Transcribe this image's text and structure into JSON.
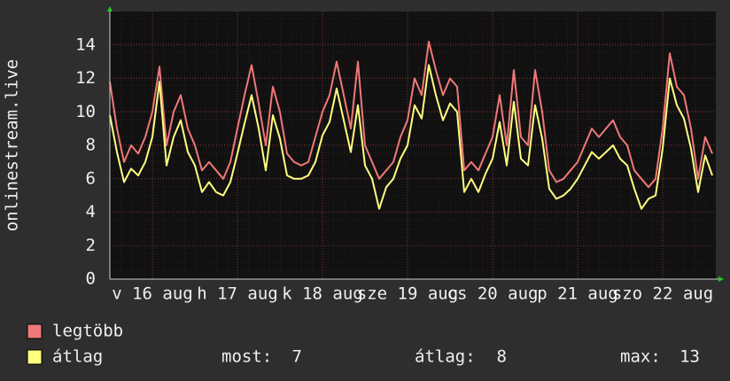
{
  "chart_data": {
    "type": "line",
    "y_label": "onlinestream.live",
    "x": [
      0,
      2,
      4,
      6,
      8,
      10,
      12,
      14,
      16,
      18,
      20,
      22,
      24,
      26,
      28,
      30,
      32,
      34,
      36,
      38,
      40,
      42,
      44,
      46,
      48,
      50,
      52,
      54,
      56,
      58,
      60,
      62,
      64,
      66,
      68,
      70,
      72,
      74,
      76,
      78,
      80,
      82,
      84,
      86,
      88,
      90,
      92,
      94,
      96,
      98,
      100,
      102,
      104,
      106,
      108,
      110,
      112,
      114,
      116,
      118,
      120,
      122,
      124,
      126,
      128,
      130,
      132,
      134,
      136,
      138,
      140,
      142,
      144,
      146,
      148,
      150,
      152,
      154,
      156,
      158,
      160,
      162,
      164,
      166,
      168,
      170
    ],
    "xlim": [
      0,
      171
    ],
    "xticks": [
      {
        "value": 12,
        "label": "v 16 aug"
      },
      {
        "value": 36,
        "label": "h 17 aug"
      },
      {
        "value": 60,
        "label": "k 18 aug"
      },
      {
        "value": 84,
        "label": "sze 19 aug"
      },
      {
        "value": 108,
        "label": "cs 20 aug"
      },
      {
        "value": 132,
        "label": "p 21 aug"
      },
      {
        "value": 156,
        "label": "szo 22 aug"
      }
    ],
    "ylim": [
      0,
      16
    ],
    "yticks": [
      0,
      2,
      4,
      6,
      8,
      10,
      12,
      14
    ],
    "grid": true,
    "series": [
      {
        "name": "legtöbb",
        "color": "#f07878",
        "values": [
          11.8,
          9,
          7,
          8,
          7.5,
          8.5,
          10,
          12.7,
          8,
          10,
          11,
          9,
          8,
          6.5,
          7,
          6.5,
          6,
          7,
          9,
          11,
          12.8,
          10.5,
          8,
          11.5,
          10,
          7.5,
          7,
          6.8,
          7,
          8.5,
          10,
          11,
          13,
          11,
          9,
          13,
          8,
          7,
          6,
          6.5,
          7,
          8.5,
          9.5,
          12,
          11,
          14.2,
          12.5,
          11,
          12,
          11.5,
          6.5,
          7,
          6.5,
          7.5,
          8.5,
          11,
          8,
          12.5,
          8.5,
          8,
          12.5,
          10,
          6.5,
          5.8,
          6,
          6.5,
          7,
          8,
          9,
          8.5,
          9,
          9.5,
          8.5,
          8,
          6.5,
          6,
          5.5,
          6,
          9,
          13.5,
          11.5,
          11,
          9,
          6,
          8.5,
          7.5
        ]
      },
      {
        "name": "átlag",
        "color": "#ffff80",
        "values": [
          9.8,
          7.6,
          5.8,
          6.6,
          6.2,
          7,
          8.5,
          11.8,
          6.8,
          8.5,
          9.5,
          7.6,
          6.8,
          5.2,
          5.8,
          5.2,
          5,
          5.8,
          7.5,
          9.3,
          11,
          9,
          6.5,
          9.8,
          8.4,
          6.2,
          6,
          6,
          6.2,
          7,
          8.6,
          9.4,
          11.4,
          9.5,
          7.6,
          10.4,
          6.8,
          6,
          4.2,
          5.5,
          6,
          7.2,
          8,
          10.4,
          9.6,
          12.8,
          11,
          9.5,
          10.5,
          10,
          5.2,
          6,
          5.2,
          6.3,
          7.2,
          9.4,
          6.8,
          10.6,
          7.2,
          6.8,
          10.4,
          8.4,
          5.4,
          4.8,
          5,
          5.4,
          6,
          6.8,
          7.6,
          7.2,
          7.6,
          8,
          7.2,
          6.8,
          5.4,
          4.2,
          4.8,
          5,
          7.8,
          12,
          10.4,
          9.6,
          7.8,
          5.2,
          7.4,
          6.2
        ]
      }
    ],
    "stats": [
      {
        "label": "most:",
        "value": 7
      },
      {
        "label": "átlag:",
        "value": 8
      },
      {
        "label": "max:",
        "value": 13
      }
    ]
  }
}
